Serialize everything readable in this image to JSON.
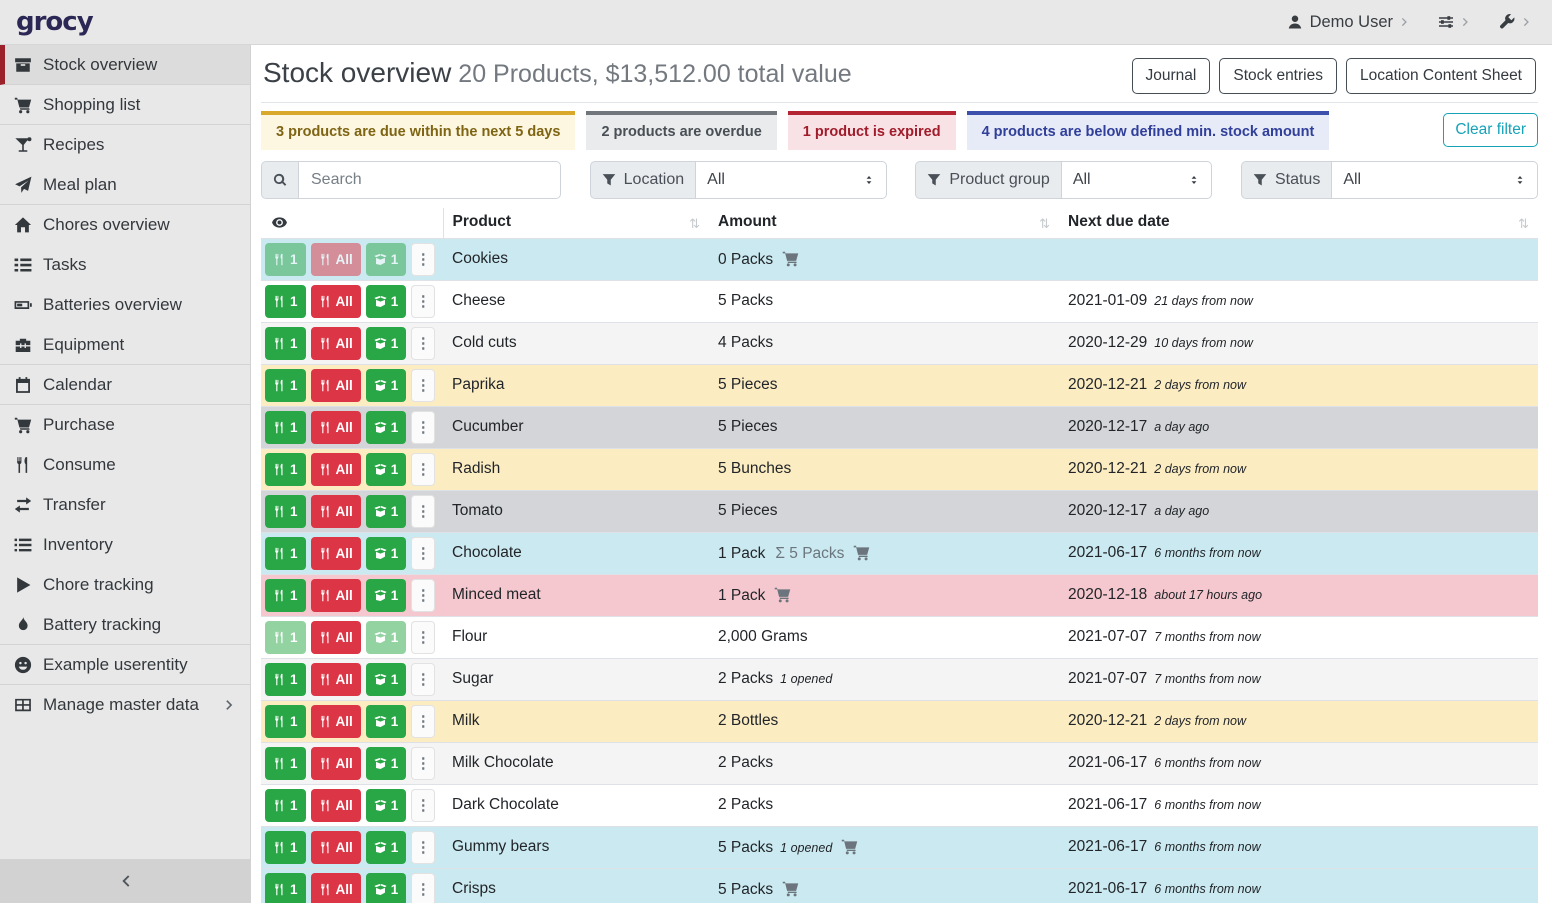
{
  "topbar": {
    "logo": "grocy",
    "user": "Demo User"
  },
  "sidebar": {
    "items": [
      {
        "label": "Stock overview",
        "icon": "box",
        "active": true,
        "divider_after": true
      },
      {
        "label": "Shopping list",
        "icon": "cart",
        "divider_after": true
      },
      {
        "label": "Recipes",
        "icon": "cocktail"
      },
      {
        "label": "Meal plan",
        "icon": "plane",
        "divider_after": true
      },
      {
        "label": "Chores overview",
        "icon": "home"
      },
      {
        "label": "Tasks",
        "icon": "tasks"
      },
      {
        "label": "Batteries overview",
        "icon": "battery"
      },
      {
        "label": "Equipment",
        "icon": "toolbox",
        "divider_after": true
      },
      {
        "label": "Calendar",
        "icon": "calendar",
        "divider_after": true
      },
      {
        "label": "Purchase",
        "icon": "cart"
      },
      {
        "label": "Consume",
        "icon": "utensils"
      },
      {
        "label": "Transfer",
        "icon": "exchange"
      },
      {
        "label": "Inventory",
        "icon": "list"
      },
      {
        "label": "Chore tracking",
        "icon": "play"
      },
      {
        "label": "Battery tracking",
        "icon": "flame",
        "divider_after": true
      },
      {
        "label": "Example userentity",
        "icon": "smiley",
        "divider_after": true
      },
      {
        "label": "Manage master data",
        "icon": "table",
        "chevron": true
      }
    ]
  },
  "header": {
    "title": "Stock overview",
    "subtitle": "20 Products, $13,512.00 total value",
    "buttons": [
      "Journal",
      "Stock entries",
      "Location Content Sheet"
    ]
  },
  "banners": [
    {
      "type": "warning",
      "text": "3 products are due within the next 5 days"
    },
    {
      "type": "secondary",
      "text": "2 products are overdue"
    },
    {
      "type": "danger",
      "text": "1 product is expired"
    },
    {
      "type": "infoblue",
      "text": "4 products are below defined min. stock amount"
    }
  ],
  "filters": {
    "clear_label": "Clear filter",
    "search_placeholder": "Search",
    "groups": [
      {
        "label": "Location",
        "value": "All"
      },
      {
        "label": "Product group",
        "value": "All"
      },
      {
        "label": "Status",
        "value": "All"
      }
    ]
  },
  "table": {
    "columns": [
      "Product",
      "Amount",
      "Next due date"
    ],
    "buttons": {
      "one": "1",
      "all": "All",
      "open": "1"
    },
    "rows": [
      {
        "product": "Cookies",
        "amount": "0 Packs",
        "opened": "",
        "sigma": "",
        "cart": true,
        "date": "",
        "rel": "",
        "status": "info",
        "faded": "all"
      },
      {
        "product": "Cheese",
        "amount": "5 Packs",
        "opened": "",
        "sigma": "",
        "cart": false,
        "date": "2021-01-09",
        "rel": "21 days from now",
        "status": "",
        "faded": ""
      },
      {
        "product": "Cold cuts",
        "amount": "4 Packs",
        "opened": "",
        "sigma": "",
        "cart": false,
        "date": "2020-12-29",
        "rel": "10 days from now",
        "status": "",
        "faded": ""
      },
      {
        "product": "Paprika",
        "amount": "5 Pieces",
        "opened": "",
        "sigma": "",
        "cart": false,
        "date": "2020-12-21",
        "rel": "2 days from now",
        "status": "warning",
        "faded": ""
      },
      {
        "product": "Cucumber",
        "amount": "5 Pieces",
        "opened": "",
        "sigma": "",
        "cart": false,
        "date": "2020-12-17",
        "rel": "a day ago",
        "status": "secondary",
        "faded": ""
      },
      {
        "product": "Radish",
        "amount": "5 Bunches",
        "opened": "",
        "sigma": "",
        "cart": false,
        "date": "2020-12-21",
        "rel": "2 days from now",
        "status": "warning",
        "faded": ""
      },
      {
        "product": "Tomato",
        "amount": "5 Pieces",
        "opened": "",
        "sigma": "",
        "cart": false,
        "date": "2020-12-17",
        "rel": "a day ago",
        "status": "secondary",
        "faded": ""
      },
      {
        "product": "Chocolate",
        "amount": "1 Pack",
        "opened": "",
        "sigma": "5 Packs",
        "cart": true,
        "date": "2021-06-17",
        "rel": "6 months from now",
        "status": "info",
        "faded": ""
      },
      {
        "product": "Minced meat",
        "amount": "1 Pack",
        "opened": "",
        "sigma": "",
        "cart": true,
        "date": "2020-12-18",
        "rel": "about 17 hours ago",
        "status": "danger",
        "faded": ""
      },
      {
        "product": "Flour",
        "amount": "2,000 Grams",
        "opened": "",
        "sigma": "",
        "cart": false,
        "date": "2021-07-07",
        "rel": "7 months from now",
        "status": "",
        "faded": "partial"
      },
      {
        "product": "Sugar",
        "amount": "2 Packs",
        "opened": "1 opened",
        "sigma": "",
        "cart": false,
        "date": "2021-07-07",
        "rel": "7 months from now",
        "status": "",
        "faded": ""
      },
      {
        "product": "Milk",
        "amount": "2 Bottles",
        "opened": "",
        "sigma": "",
        "cart": false,
        "date": "2020-12-21",
        "rel": "2 days from now",
        "status": "warning",
        "faded": ""
      },
      {
        "product": "Milk Chocolate",
        "amount": "2 Packs",
        "opened": "",
        "sigma": "",
        "cart": false,
        "date": "2021-06-17",
        "rel": "6 months from now",
        "status": "",
        "faded": ""
      },
      {
        "product": "Dark Chocolate",
        "amount": "2 Packs",
        "opened": "",
        "sigma": "",
        "cart": false,
        "date": "2021-06-17",
        "rel": "6 months from now",
        "status": "",
        "faded": ""
      },
      {
        "product": "Gummy bears",
        "amount": "5 Packs",
        "opened": "1 opened",
        "sigma": "",
        "cart": true,
        "date": "2021-06-17",
        "rel": "6 months from now",
        "status": "info",
        "faded": ""
      },
      {
        "product": "Crisps",
        "amount": "5 Packs",
        "opened": "",
        "sigma": "",
        "cart": true,
        "date": "2021-06-17",
        "rel": "6 months from now",
        "status": "info",
        "faded": ""
      }
    ]
  },
  "colors": {
    "accent_red": "#9b212b",
    "banner_warning": "#d8a92b",
    "banner_secondary": "#70767c",
    "banner_danger": "#b52433",
    "banner_info_blue": "#3c4fad",
    "row_info": "#cbe9f0",
    "row_warning": "#fcecc2",
    "row_secondary": "#d3d5d8",
    "row_danger": "#f5c8cf",
    "btn_green": "#29a746",
    "btn_red": "#dc3545",
    "teal_outline": "#17a2b8"
  }
}
